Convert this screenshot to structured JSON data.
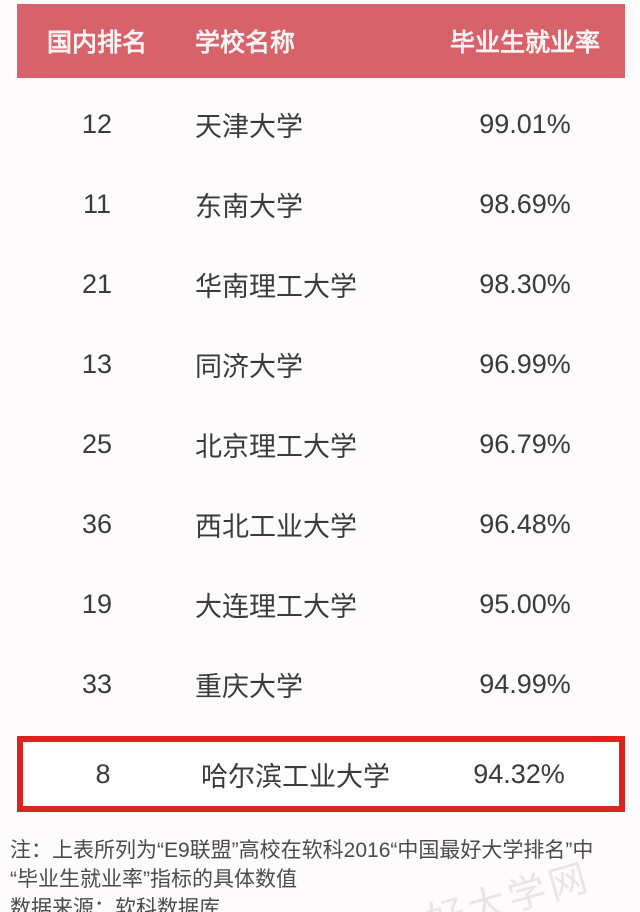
{
  "colors": {
    "header_bg": "#d7626a",
    "header_text": "#fbf3f3",
    "highlight_border": "#da241e",
    "body_text": "#3b3b3b",
    "note_text": "#4c4c4c",
    "page_bg": "#fdfbfb"
  },
  "table": {
    "headers": [
      "国内排名",
      "学校名称",
      "毕业生就业率"
    ],
    "rows": [
      {
        "rank": "12",
        "school": "天津大学",
        "rate": "99.01%",
        "highlighted": false
      },
      {
        "rank": "11",
        "school": "东南大学",
        "rate": "98.69%",
        "highlighted": false
      },
      {
        "rank": "21",
        "school": "华南理工大学",
        "rate": "98.30%",
        "highlighted": false
      },
      {
        "rank": "13",
        "school": "同济大学",
        "rate": "96.99%",
        "highlighted": false
      },
      {
        "rank": "25",
        "school": "北京理工大学",
        "rate": "96.79%",
        "highlighted": false
      },
      {
        "rank": "36",
        "school": "西北工业大学",
        "rate": "96.48%",
        "highlighted": false
      },
      {
        "rank": "19",
        "school": "大连理工大学",
        "rate": "95.00%",
        "highlighted": false
      },
      {
        "rank": "33",
        "school": "重庆大学",
        "rate": "94.99%",
        "highlighted": false
      },
      {
        "rank": "8",
        "school": "哈尔滨工业大学",
        "rate": "94.32%",
        "highlighted": true
      }
    ]
  },
  "footer": {
    "note_line1": "注：上表所列为“E9联盟”高校在软科2016“中国最好大学排名”中",
    "note_line2": "“毕业生就业率”指标的具体数值",
    "source": "数据来源：软科数据库"
  },
  "watermark": {
    "text": "好大学网"
  },
  "chart_data": {
    "type": "table",
    "columns": [
      "国内排名",
      "学校名称",
      "毕业生就业率"
    ],
    "rows": [
      [
        12,
        "天津大学",
        "99.01%"
      ],
      [
        11,
        "东南大学",
        "98.69%"
      ],
      [
        21,
        "华南理工大学",
        "98.30%"
      ],
      [
        13,
        "同济大学",
        "96.99%"
      ],
      [
        25,
        "北京理工大学",
        "96.79%"
      ],
      [
        36,
        "西北工业大学",
        "96.48%"
      ],
      [
        19,
        "大连理工大学",
        "95.00%"
      ],
      [
        33,
        "重庆大学",
        "94.99%"
      ],
      [
        8,
        "哈尔滨工业大学",
        "94.32%"
      ]
    ],
    "highlighted_row": {
      "rank": 8,
      "school": "哈尔滨工业大学",
      "rate": "94.32%"
    },
    "notes": "注：上表所列为“E9联盟”高校在软科2016“中国最好大学排名”中“毕业生就业率”指标的具体数值",
    "source": "数据来源：软科数据库"
  }
}
